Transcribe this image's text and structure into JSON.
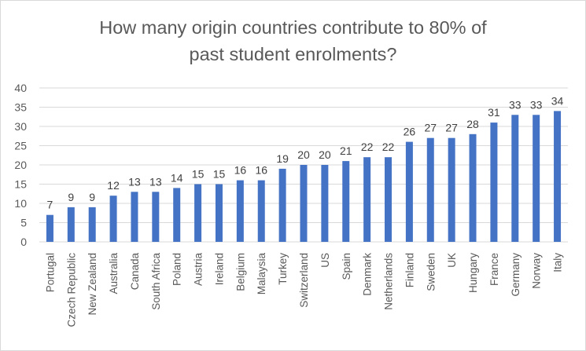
{
  "chart_data": {
    "type": "bar",
    "title_lines": [
      "How many origin countries contribute to 80% of",
      "past student enrolments?"
    ],
    "categories": [
      "Portugal",
      "Czech Republic",
      "New Zealand",
      "Australia",
      "Canada",
      "South Africa",
      "Poland",
      "Austria",
      "Ireland",
      "Belgium",
      "Malaysia",
      "Turkey",
      "Switzerland",
      "US",
      "Spain",
      "Denmark",
      "Netherlands",
      "Finland",
      "Sweden",
      "UK",
      "Hungary",
      "France",
      "Germany",
      "Norway",
      "Italy"
    ],
    "series": [
      {
        "values": [
          7,
          9,
          9,
          12,
          13,
          13,
          14,
          15,
          15,
          16,
          16,
          19,
          20,
          20,
          21,
          22,
          22,
          26,
          27,
          27,
          28,
          31,
          33,
          33,
          34
        ]
      }
    ],
    "y_ticks": [
      "0",
      "5",
      "10",
      "15",
      "20",
      "25",
      "30",
      "35",
      "40"
    ],
    "ylim": [
      0,
      40
    ],
    "grid": true,
    "data_labels": true,
    "legend": "none",
    "colors": {
      "bar": "#4472C4",
      "grid": "#d9d9d9",
      "text": "#595959",
      "label": "#404040"
    }
  }
}
